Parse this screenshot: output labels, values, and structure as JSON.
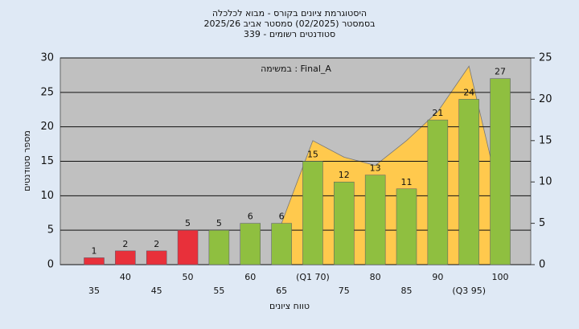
{
  "chart_data": {
    "type": "bar",
    "title": "היסטוגרמת ציונים בקורס - מבוא לכלכלה",
    "subtitle": "בסמסטר  (02/2025)  סמסטר אביב 2025/26",
    "subtitle2": "סטודנטים רשומים - 339",
    "annotation": "במשימה : Final_A",
    "x_label": "טווח ציונים",
    "y_label": "מספר סטודנטים",
    "categories": [
      "35",
      "40",
      "45",
      "50",
      "55",
      "60",
      "65",
      "(Q1 70)",
      "75",
      "80",
      "85",
      "90",
      "(Q3 95)",
      "100"
    ],
    "values": [
      1,
      2,
      2,
      5,
      5,
      6,
      6,
      15,
      12,
      13,
      11,
      21,
      24,
      27
    ],
    "colors": [
      "#e8303a",
      "#e8303a",
      "#e8303a",
      "#e8303a",
      "#8fbf40",
      "#8fbf40",
      "#8fbf40",
      "#8fbf40",
      "#8fbf40",
      "#8fbf40",
      "#8fbf40",
      "#8fbf40",
      "#8fbf40",
      "#8fbf40"
    ],
    "series": [
      {
        "color": "#ffc94d",
        "axis": "y2",
        "values": [
          null,
          null,
          null,
          null,
          null,
          null,
          5,
          15,
          13,
          12,
          15,
          18.5,
          24,
          8
        ]
      }
    ],
    "ylim": [
      0,
      30
    ],
    "yticks": [
      0,
      5,
      10,
      15,
      20,
      25,
      30
    ],
    "y2lim": [
      0,
      25
    ],
    "y2ticks": [
      0,
      5,
      10,
      15,
      20,
      25
    ],
    "grid": true
  }
}
